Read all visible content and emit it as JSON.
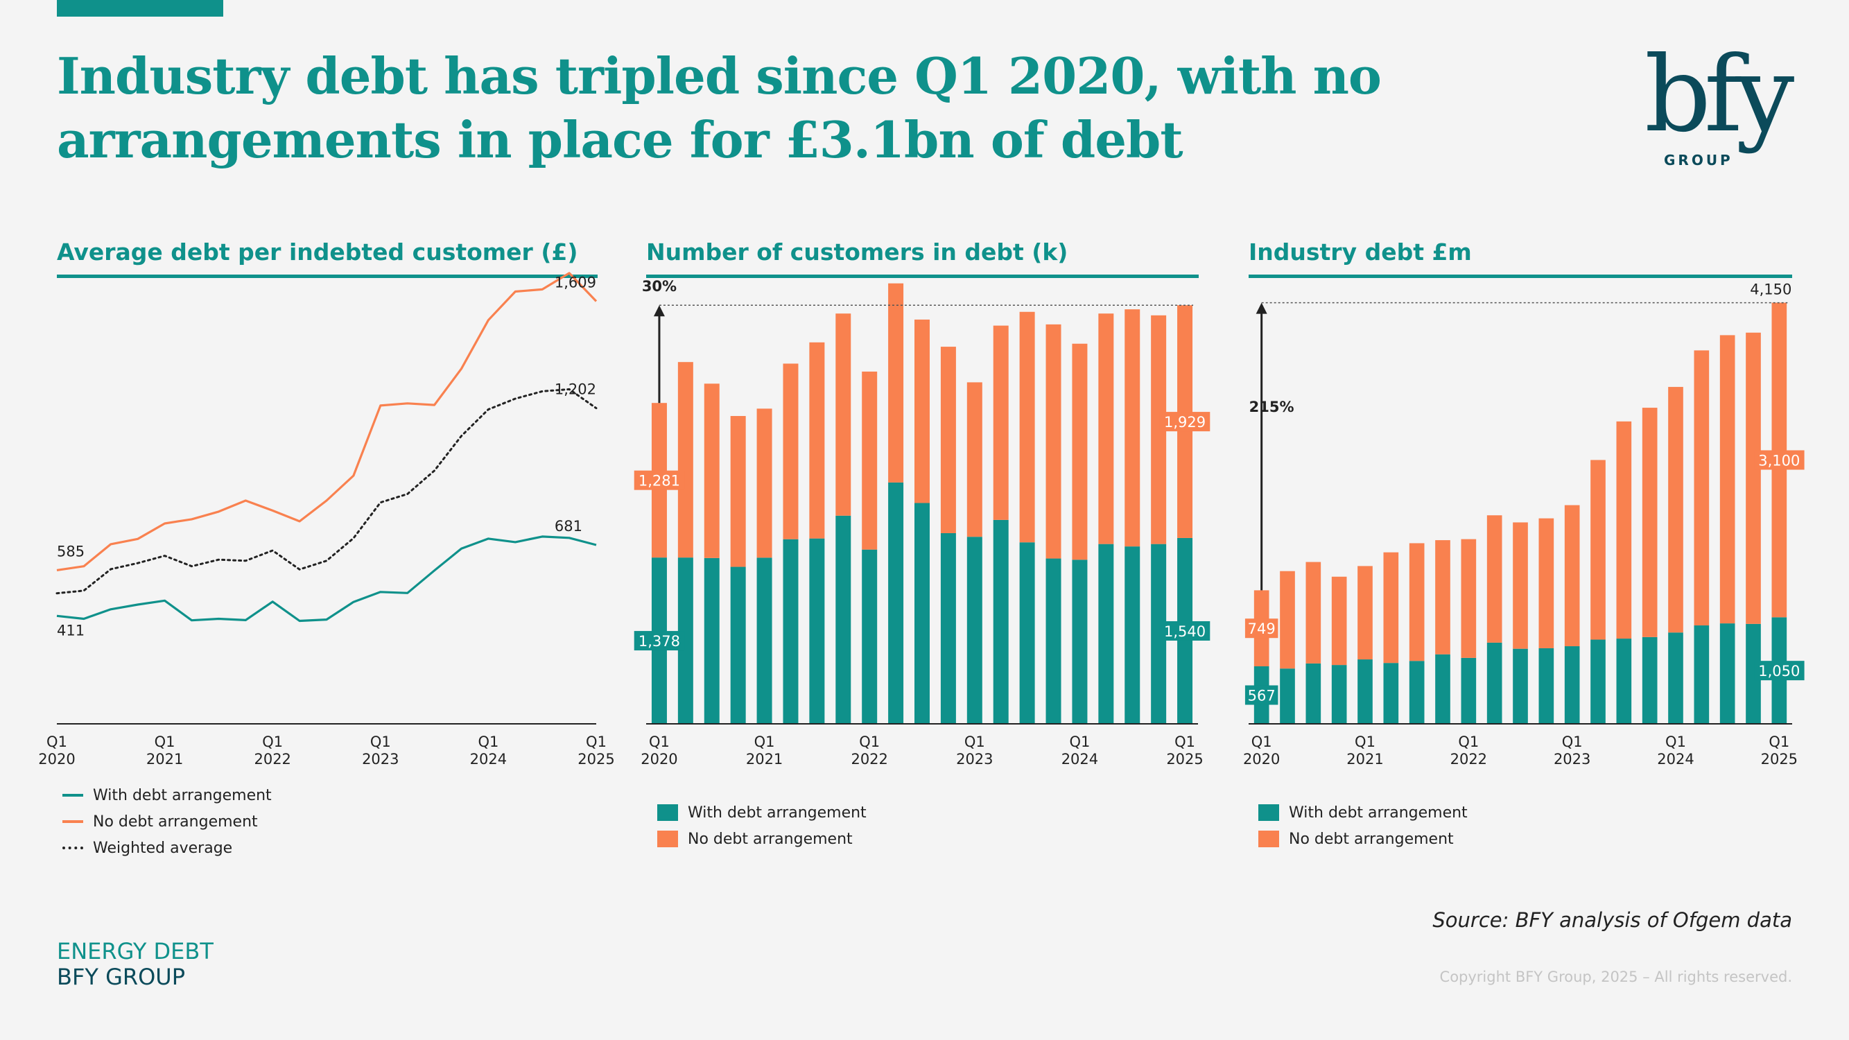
{
  "title_line1": "Industry debt has tripled since Q1 2020, with no",
  "title_line2": "arrangements in place for £3.1bn of debt",
  "logo": {
    "wordmark": "bfy",
    "subtext": "GROUP"
  },
  "source": "Source: BFY analysis of Ofgem data",
  "copyright": "Copyright BFY Group, 2025 – All rights reserved.",
  "footer": {
    "line1": "ENERGY DEBT",
    "line2": "BFY GROUP"
  },
  "colors": {
    "teal": "#0f918b",
    "orange": "#f9814f",
    "dark": "#222222",
    "navy": "#0b4a5a"
  },
  "chart_data": [
    {
      "type": "line",
      "title": "Average debt per indebted customer (£)",
      "x": [
        "Q1 2020",
        "Q2 2020",
        "Q3 2020",
        "Q4 2020",
        "Q1 2021",
        "Q2 2021",
        "Q3 2021",
        "Q4 2021",
        "Q1 2022",
        "Q2 2022",
        "Q3 2022",
        "Q4 2022",
        "Q1 2023",
        "Q2 2023",
        "Q3 2023",
        "Q4 2023",
        "Q1 2024",
        "Q2 2024",
        "Q3 2024",
        "Q4 2024",
        "Q1 2025"
      ],
      "tick_labels": [
        {
          "q": "Q1",
          "year": "2020"
        },
        {
          "q": "Q1",
          "year": "2021"
        },
        {
          "q": "Q1",
          "year": "2022"
        },
        {
          "q": "Q1",
          "year": "2023"
        },
        {
          "q": "Q1",
          "year": "2024"
        },
        {
          "q": "Q1",
          "year": "2025"
        }
      ],
      "ylim": [
        0,
        1700
      ],
      "series": [
        {
          "name": "With debt arrangement",
          "color": "#0f918b",
          "style": "solid",
          "values": [
            411,
            400,
            436,
            454,
            469,
            394,
            400,
            395,
            465,
            392,
            397,
            464,
            502,
            498,
            584,
            667,
            705,
            692,
            713,
            708,
            681
          ]
        },
        {
          "name": "No debt arrangement",
          "color": "#f9814f",
          "style": "solid",
          "values": [
            585,
            600,
            684,
            704,
            763,
            779,
            808,
            850,
            812,
            771,
            850,
            945,
            1212,
            1220,
            1214,
            1352,
            1537,
            1646,
            1654,
            1716,
            1609
          ]
        },
        {
          "name": "Weighted average",
          "color": "#222222",
          "style": "dotted",
          "values": [
            497,
            507,
            589,
            612,
            640,
            600,
            625,
            621,
            660,
            588,
            621,
            707,
            843,
            875,
            964,
            1096,
            1197,
            1238,
            1266,
            1274,
            1202
          ]
        }
      ],
      "annotations": [
        {
          "label": "585",
          "series": "No debt arrangement",
          "index": 0
        },
        {
          "label": "411",
          "series": "With debt arrangement",
          "index": 0
        },
        {
          "label": "1,609",
          "series": "No debt arrangement",
          "index": 20
        },
        {
          "label": "1,202",
          "series": "Weighted average",
          "index": 20
        },
        {
          "label": "681",
          "series": "With debt arrangement",
          "index": 20
        }
      ]
    },
    {
      "type": "bar",
      "stacked": true,
      "title": "Number of customers in debt (k)",
      "categories": [
        "Q1 2020",
        "Q2 2020",
        "Q3 2020",
        "Q4 2020",
        "Q1 2021",
        "Q2 2021",
        "Q3 2021",
        "Q4 2021",
        "Q1 2022",
        "Q2 2022",
        "Q3 2022",
        "Q4 2022",
        "Q1 2023",
        "Q2 2023",
        "Q3 2023",
        "Q4 2023",
        "Q1 2024",
        "Q2 2024",
        "Q3 2024",
        "Q4 2024",
        "Q1 2025"
      ],
      "tick_labels": [
        {
          "q": "Q1",
          "year": "2020"
        },
        {
          "q": "Q1",
          "year": "2021"
        },
        {
          "q": "Q1",
          "year": "2022"
        },
        {
          "q": "Q1",
          "year": "2023"
        },
        {
          "q": "Q1",
          "year": "2024"
        },
        {
          "q": "Q1",
          "year": "2025"
        }
      ],
      "ylim": [
        0,
        3700
      ],
      "series": [
        {
          "name": "With debt arrangement",
          "color": "#0f918b",
          "values": [
            1378,
            1378,
            1374,
            1301,
            1377,
            1530,
            1536,
            1725,
            1444,
            2000,
            1830,
            1580,
            1550,
            1690,
            1504,
            1370,
            1360,
            1490,
            1470,
            1490,
            1540
          ]
        },
        {
          "name": "No debt arrangement",
          "color": "#f9814f",
          "values": [
            1281,
            1620,
            1445,
            1250,
            1235,
            1455,
            1625,
            1675,
            1475,
            1650,
            1520,
            1545,
            1280,
            1610,
            1910,
            1940,
            1790,
            1910,
            1965,
            1895,
            1929
          ]
        }
      ],
      "annotations": [
        {
          "label": "1,281",
          "series": "No debt arrangement",
          "index": 0
        },
        {
          "label": "1,378",
          "series": "With debt arrangement",
          "index": 0
        },
        {
          "label": "1,929",
          "series": "No debt arrangement",
          "index": 20
        },
        {
          "label": "1,540",
          "series": "With debt arrangement",
          "index": 20
        },
        {
          "label": "30%"
        }
      ]
    },
    {
      "type": "bar",
      "stacked": true,
      "title": "Industry debt £m",
      "categories": [
        "Q1 2020",
        "Q2 2020",
        "Q3 2020",
        "Q4 2020",
        "Q1 2021",
        "Q2 2021",
        "Q3 2021",
        "Q4 2021",
        "Q1 2022",
        "Q2 2022",
        "Q3 2022",
        "Q4 2022",
        "Q1 2023",
        "Q2 2023",
        "Q3 2023",
        "Q4 2023",
        "Q1 2024",
        "Q2 2024",
        "Q3 2024",
        "Q4 2024",
        "Q1 2025"
      ],
      "tick_labels": [
        {
          "q": "Q1",
          "year": "2020"
        },
        {
          "q": "Q1",
          "year": "2021"
        },
        {
          "q": "Q1",
          "year": "2022"
        },
        {
          "q": "Q1",
          "year": "2023"
        },
        {
          "q": "Q1",
          "year": "2024"
        },
        {
          "q": "Q1",
          "year": "2025"
        }
      ],
      "ylim": [
        0,
        4400
      ],
      "series": [
        {
          "name": "With debt arrangement",
          "color": "#0f918b",
          "values": [
            567,
            545,
            595,
            580,
            635,
            600,
            620,
            685,
            650,
            800,
            740,
            745,
            765,
            830,
            840,
            855,
            900,
            970,
            990,
            985,
            1050
          ]
        },
        {
          "name": "No debt arrangement",
          "color": "#f9814f",
          "values": [
            749,
            960,
            1000,
            870,
            920,
            1090,
            1160,
            1125,
            1170,
            1255,
            1245,
            1280,
            1390,
            1770,
            2140,
            2260,
            2420,
            2710,
            2840,
            2870,
            3100
          ]
        }
      ],
      "annotations": [
        {
          "label": "749",
          "series": "No debt arrangement",
          "index": 0
        },
        {
          "label": "567",
          "series": "With debt arrangement",
          "index": 0
        },
        {
          "label": "3,100",
          "series": "No debt arrangement",
          "index": 20
        },
        {
          "label": "1,050",
          "series": "With debt arrangement",
          "index": 20
        },
        {
          "label": "4,150",
          "series": "total",
          "index": 20
        },
        {
          "label": "215%"
        }
      ]
    }
  ]
}
